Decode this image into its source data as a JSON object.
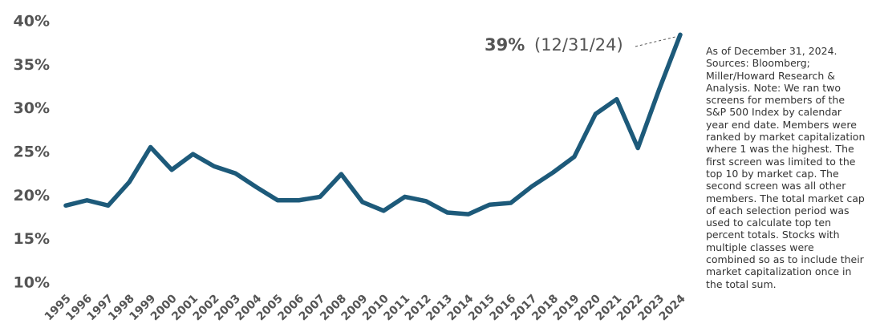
{
  "chart_data": {
    "type": "line",
    "categories": [
      "1995",
      "1996",
      "1997",
      "1998",
      "1999",
      "2000",
      "2001",
      "2002",
      "2003",
      "2004",
      "2005",
      "2006",
      "2007",
      "2008",
      "2009",
      "2010",
      "2011",
      "2012",
      "2013",
      "2014",
      "2015",
      "2016",
      "2017",
      "2018",
      "2019",
      "2020",
      "2021",
      "2022",
      "2023",
      "2024"
    ],
    "values": [
      18.9,
      19.5,
      18.9,
      21.6,
      25.6,
      23.0,
      24.8,
      23.4,
      22.6,
      21.0,
      19.5,
      19.5,
      19.9,
      22.5,
      19.3,
      18.3,
      19.9,
      19.4,
      18.1,
      17.9,
      19.0,
      19.2,
      21.1,
      22.7,
      24.5,
      29.4,
      31.1,
      25.5,
      32.2,
      38.5
    ],
    "color": "#1d5a7a",
    "ylim": [
      10,
      40
    ],
    "yticks": [
      {
        "value": 10,
        "label": "10%"
      },
      {
        "value": 15,
        "label": "15%"
      },
      {
        "value": 20,
        "label": "20%"
      },
      {
        "value": 25,
        "label": "25%"
      },
      {
        "value": 30,
        "label": "30%"
      },
      {
        "value": 35,
        "label": "35%"
      },
      {
        "value": 40,
        "label": "40%"
      }
    ],
    "annotation": {
      "value_text": "39%",
      "date_text": "(12/31/24)"
    },
    "note": "As of December 31, 2024. Sources: Bloomberg; Miller/Howard Research & Analysis. Note: We ran two screens for members of the S&P 500 Index by calendar year end date. Members were ranked by market capitalization where 1 was the highest. The first screen was limited to the top 10 by market cap. The second screen was all other members. The total market cap of each selection period was used to calculate top ten percent totals. Stocks with multiple classes were combined so as to include their market capitalization once in the total sum."
  }
}
